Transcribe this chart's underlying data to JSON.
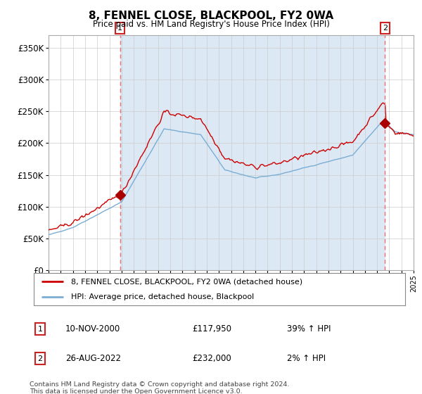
{
  "title": "8, FENNEL CLOSE, BLACKPOOL, FY2 0WA",
  "subtitle": "Price paid vs. HM Land Registry's House Price Index (HPI)",
  "legend_line1": "8, FENNEL CLOSE, BLACKPOOL, FY2 0WA (detached house)",
  "legend_line2": "HPI: Average price, detached house, Blackpool",
  "transaction1_label": "1",
  "transaction1_date": "10-NOV-2000",
  "transaction1_price": "£117,950",
  "transaction1_hpi": "39% ↑ HPI",
  "transaction2_label": "2",
  "transaction2_date": "26-AUG-2022",
  "transaction2_price": "£232,000",
  "transaction2_hpi": "2% ↑ HPI",
  "footnote": "Contains HM Land Registry data © Crown copyright and database right 2024.\nThis data is licensed under the Open Government Licence v3.0.",
  "red_color": "#cc0000",
  "blue_color": "#7aadd4",
  "shade_color": "#dce9f5",
  "dashed_red": "#e87070",
  "marker_color": "#aa0000",
  "ylim": [
    0,
    370000
  ],
  "yticks": [
    0,
    50000,
    100000,
    150000,
    200000,
    250000,
    300000,
    350000
  ],
  "ytick_labels": [
    "£0",
    "£50K",
    "£100K",
    "£150K",
    "£200K",
    "£250K",
    "£300K",
    "£350K"
  ],
  "x_start_year": 1995,
  "x_end_year": 2025,
  "transaction1_year": 2000.87,
  "transaction2_year": 2022.65,
  "transaction1_price_val": 117950,
  "transaction2_price_val": 232000,
  "background_color": "#ffffff",
  "grid_color": "#cccccc",
  "plot_bg": "#ffffff"
}
